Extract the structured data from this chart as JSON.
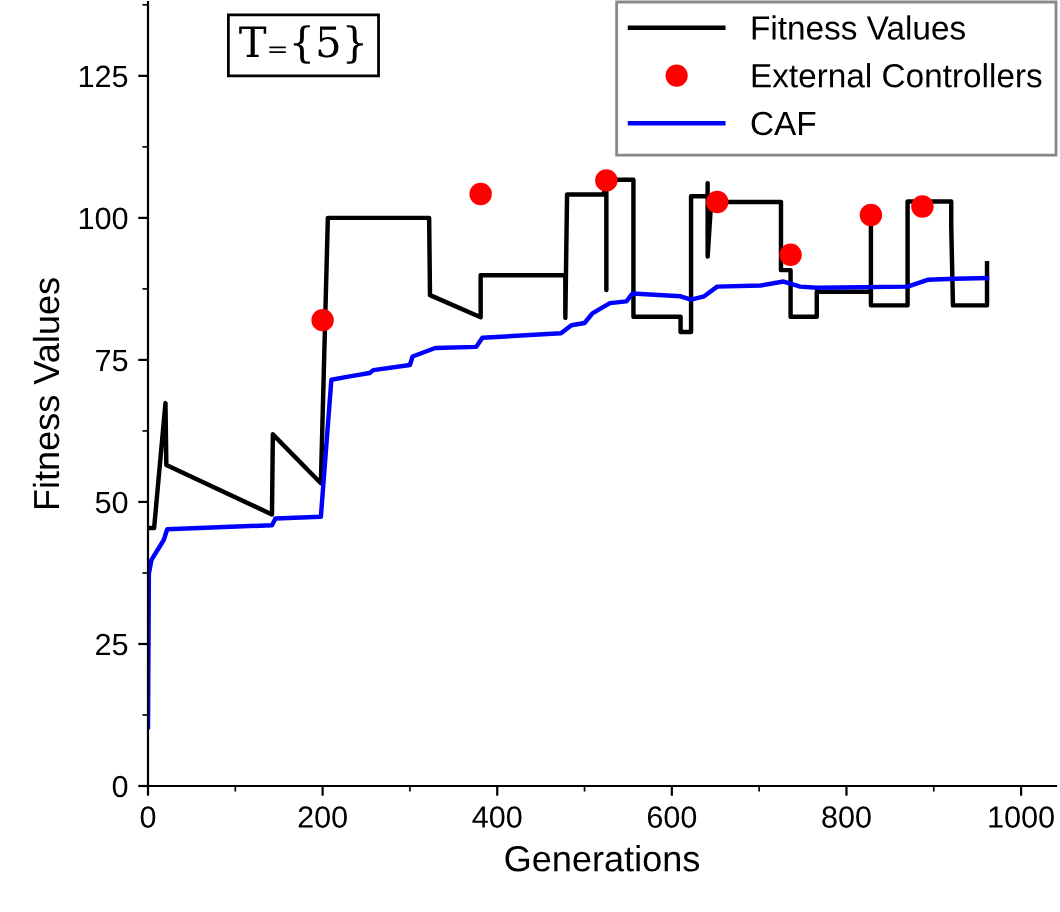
{
  "chart_data": {
    "type": "line",
    "xlabel": "Generations",
    "ylabel": "Fitness Values",
    "annotations": [
      "T₌{5}"
    ],
    "xlim": [
      0,
      1040
    ],
    "ylim": [
      0,
      138
    ],
    "xticks": [
      0,
      200,
      400,
      600,
      800,
      1000
    ],
    "yticks": [
      0,
      25,
      50,
      75,
      100,
      125
    ],
    "grid": false,
    "legend": "top right",
    "series": [
      {
        "name": "Fitness Values",
        "color": "#000000",
        "marker": "none",
        "x": [
          0,
          7,
          20,
          21,
          142,
          143,
          198,
          206,
          322,
          323,
          381,
          381,
          478,
          478,
          480,
          522,
          525,
          525,
          525,
          556,
          556,
          610,
          610,
          622,
          622,
          641,
          641,
          641,
          645,
          725,
          725,
          736,
          736,
          766,
          766,
          828,
          828,
          828,
          870,
          870,
          920,
          920,
          922,
          961,
          961
        ],
        "values": [
          45.4,
          45.4,
          67.4,
          56.5,
          47.8,
          61.9,
          53.3,
          100,
          100,
          86.4,
          82.5,
          89.9,
          89.9,
          82.4,
          104.1,
          104.1,
          106.7,
          87.3,
          106.7,
          106.7,
          82.6,
          82.6,
          79.9,
          79.9,
          103.8,
          103.8,
          106.1,
          93.2,
          102.8,
          102.8,
          90.8,
          90.8,
          82.6,
          82.6,
          87,
          87,
          100.5,
          84.6,
          84.6,
          102.9,
          102.9,
          98.5,
          84.6,
          84.6,
          92
        ]
      },
      {
        "name": "External Controllers",
        "type": "scatter",
        "color": "#ff0000",
        "marker": "circle",
        "x": [
          200,
          381,
          525,
          652,
          736,
          828,
          887
        ],
        "values": [
          82,
          104.2,
          106.6,
          102.8,
          93.5,
          100.5,
          102
        ]
      },
      {
        "name": "CAF",
        "color": "#0000ff",
        "marker": "none",
        "x": [
          0,
          1,
          4,
          18,
          22,
          142,
          146,
          198,
          210,
          231,
          254,
          258,
          300,
          303,
          329,
          376,
          383,
          473,
          485,
          500,
          509,
          529,
          548,
          555,
          610,
          622,
          637,
          652,
          702,
          728,
          747,
          766,
          870,
          893,
          924,
          961
        ],
        "values": [
          10.4,
          37.4,
          39.8,
          43.3,
          45.2,
          45.9,
          47.1,
          47.4,
          71.5,
          72.1,
          72.7,
          73.2,
          74.1,
          75.6,
          77.1,
          77.3,
          78.9,
          79.7,
          81.1,
          81.5,
          83.2,
          85,
          85.3,
          86.7,
          86.2,
          85.6,
          86.2,
          87.9,
          88.1,
          88.8,
          87.9,
          87.7,
          87.9,
          89.1,
          89.3,
          89.4
        ]
      }
    ]
  }
}
